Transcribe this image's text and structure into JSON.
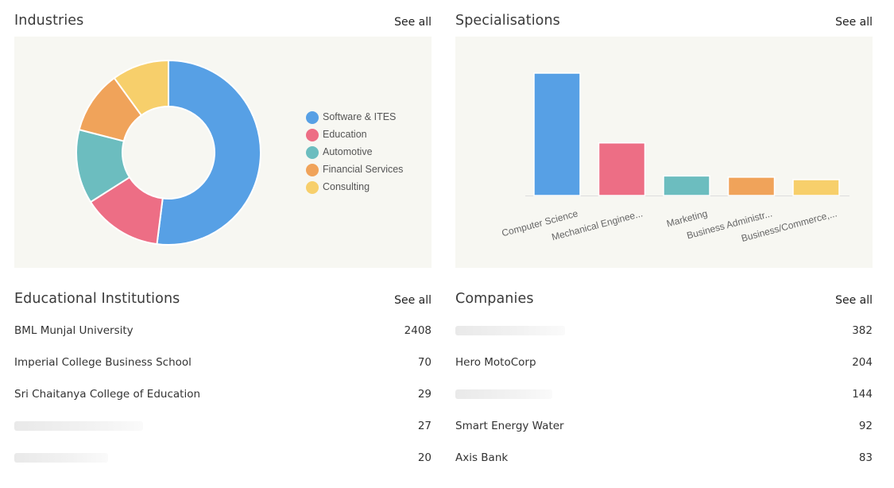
{
  "industries": {
    "title": "Industries",
    "see_all": "See all",
    "chart_data": {
      "type": "pie",
      "donut": true,
      "categories": [
        "Software & ITES",
        "Education",
        "Automotive",
        "Financial Services",
        "Consulting"
      ],
      "values": [
        52,
        14,
        13,
        11,
        10
      ],
      "colors": [
        "#57a0e5",
        "#ed6e85",
        "#6cbdbf",
        "#f0a35a",
        "#f7cf6b"
      ],
      "legend": "right"
    }
  },
  "specialisations": {
    "title": "Specialisations",
    "see_all": "See all",
    "chart_data": {
      "type": "bar",
      "categories": [
        "Computer Science",
        "Mechanical Enginee...",
        "Marketing",
        "Business Administr...",
        "Business/Commerce,..."
      ],
      "values": [
        100,
        43,
        16,
        15,
        13
      ],
      "colors": [
        "#57a0e5",
        "#ed6e85",
        "#6cbdbf",
        "#f0a35a",
        "#f7cf6b"
      ],
      "ylim": [
        0,
        100
      ],
      "grid": false
    }
  },
  "educational_institutions": {
    "title": "Educational Institutions",
    "see_all": "See all",
    "rows": [
      {
        "name": "BML Munjal University",
        "count": "2408"
      },
      {
        "name": "Imperial College Business School",
        "count": "70"
      },
      {
        "name": "Sri Chaitanya College of Education",
        "count": "29"
      },
      {
        "name": "",
        "count": "27"
      },
      {
        "name": "",
        "count": "20"
      }
    ]
  },
  "companies": {
    "title": "Companies",
    "see_all": "See all",
    "rows": [
      {
        "name": "",
        "count": "382"
      },
      {
        "name": "Hero MotoCorp",
        "count": "204"
      },
      {
        "name": "",
        "count": "144"
      },
      {
        "name": "Smart Energy Water",
        "count": "92"
      },
      {
        "name": "Axis Bank",
        "count": "83"
      }
    ]
  }
}
